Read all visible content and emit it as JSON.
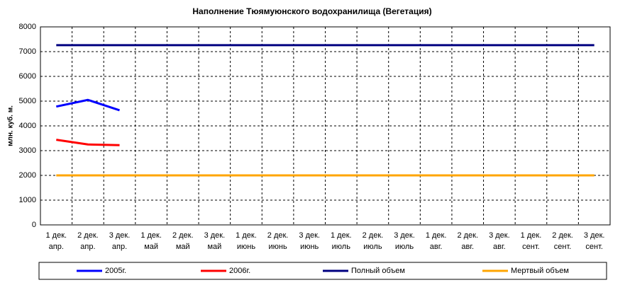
{
  "chart_data": {
    "type": "line",
    "title": "Наполнение Тюямуюнского водохранилища (Вегетация)",
    "y_label": "млн. куб. м.",
    "categories": [
      [
        "1 дек.",
        "апр."
      ],
      [
        "2 дек.",
        "апр."
      ],
      [
        "3 дек.",
        "апр."
      ],
      [
        "1 дек.",
        "май"
      ],
      [
        "2 дек.",
        "май"
      ],
      [
        "3 дек.",
        "май"
      ],
      [
        "1 дек.",
        "июнь"
      ],
      [
        "2 дек.",
        "июнь"
      ],
      [
        "3 дек.",
        "июнь"
      ],
      [
        "1 дек.",
        "июль"
      ],
      [
        "2 дек.",
        "июль"
      ],
      [
        "3 дек.",
        "июль"
      ],
      [
        "1 дек.",
        "авг."
      ],
      [
        "2 дек.",
        "авг."
      ],
      [
        "3 дек.",
        "авг."
      ],
      [
        "1 дек.",
        "сент."
      ],
      [
        "2 дек.",
        "сент."
      ],
      [
        "3 дек.",
        "сент."
      ]
    ],
    "series": [
      {
        "name": "2005г.",
        "color": "#0000ff",
        "values": [
          4780,
          5050,
          4630,
          null,
          null,
          null,
          null,
          null,
          null,
          null,
          null,
          null,
          null,
          null,
          null,
          null,
          null,
          null
        ]
      },
      {
        "name": "2006г.",
        "color": "#ff0000",
        "values": [
          3440,
          3250,
          3220,
          null,
          null,
          null,
          null,
          null,
          null,
          null,
          null,
          null,
          null,
          null,
          null,
          null,
          null,
          null
        ]
      },
      {
        "name": "Полный объем",
        "color": "#000080",
        "values": [
          7260,
          7260,
          7260,
          7260,
          7260,
          7260,
          7260,
          7260,
          7260,
          7260,
          7260,
          7260,
          7260,
          7260,
          7260,
          7260,
          7260,
          7260
        ]
      },
      {
        "name": "Мертвый объем",
        "color": "#ffa500",
        "values": [
          2000,
          2000,
          2000,
          2000,
          2000,
          2000,
          2000,
          2000,
          2000,
          2000,
          2000,
          2000,
          2000,
          2000,
          2000,
          2000,
          2000,
          2000
        ]
      }
    ],
    "ylim": [
      0,
      8000
    ],
    "yticks": [
      0,
      1000,
      2000,
      3000,
      4000,
      5000,
      6000,
      7000,
      8000
    ],
    "grid": true
  }
}
